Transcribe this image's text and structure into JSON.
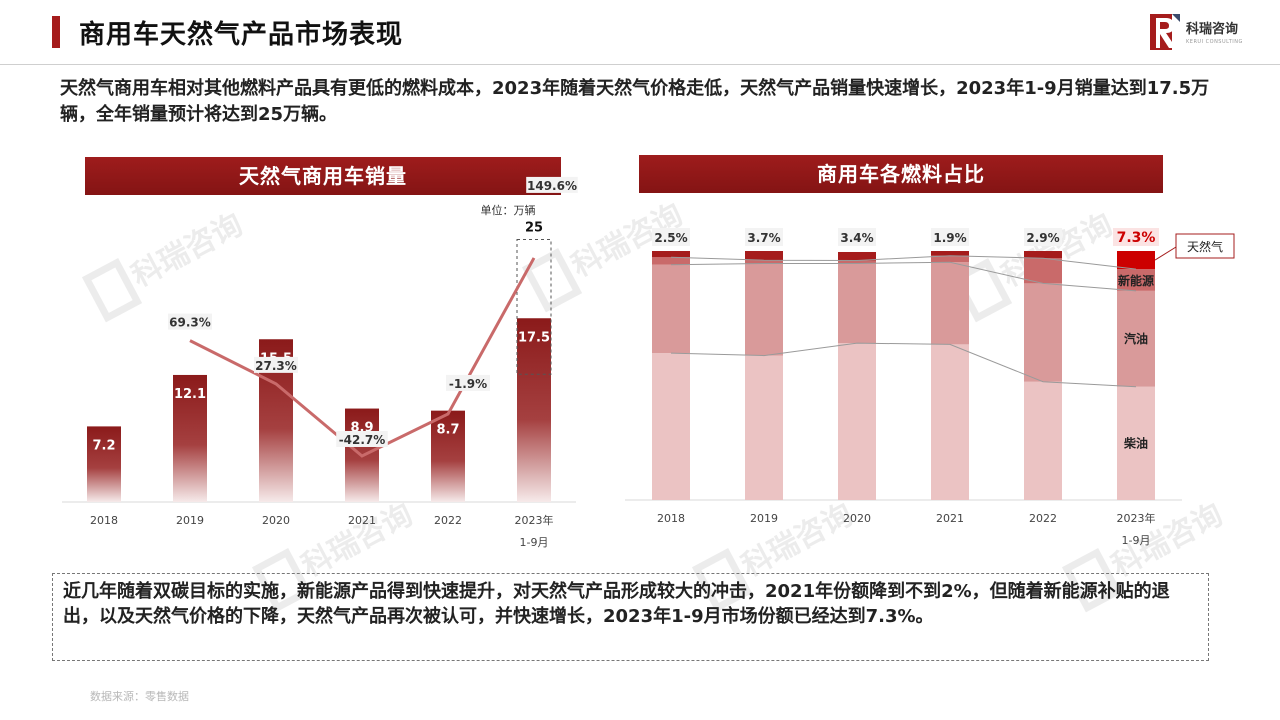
{
  "page": {
    "title": "商用车天然气产品市场表现",
    "logo_name": "科瑞咨询",
    "logo_sub": "KERUI CONSULTING",
    "intro": "天然气商用车相对其他燃料产品具有更低的燃料成本，2023年随着天然气价格走低，天然气产品销量快速增长，2023年1-9月销量达到17.5万辆，全年销量预计将达到25万辆。",
    "conclusion": "近几年随着双碳目标的实施，新能源产品得到快速提升，对天然气产品形成较大的冲击，2021年份额降到不到2%，但随着新能源补贴的退出，以及天然气价格的下降，天然气产品再次被认可，并快速增长，2023年1-9月市场份额已经达到7.3%。",
    "source": "数据来源：零售数据",
    "watermark": "科瑞咨询",
    "colors": {
      "brand": "#a51c1c",
      "line": "#c96a6a",
      "highlight": "#cc0000"
    }
  },
  "chart_data": [
    {
      "type": "bar",
      "title": "天然气商用车销量",
      "unit_label": "单位：万辆",
      "categories": [
        "2018",
        "2019",
        "2020",
        "2021",
        "2022",
        "2023年|1-9月"
      ],
      "series": [
        {
          "values": [
            7.2,
            12.1,
            15.5,
            8.9,
            8.7,
            17.5
          ]
        }
      ],
      "projection": {
        "category": "2023年|1-9月",
        "value": 25,
        "label": "25"
      },
      "growth_line": {
        "values": [
          null,
          69.3,
          27.3,
          -42.7,
          -1.9,
          149.6
        ],
        "labels": [
          "",
          "69.3%",
          "27.3%",
          "-42.7%",
          "-1.9%",
          "149.6%"
        ]
      },
      "bar_colors": [
        "#8b1a1a",
        "#f6eaea"
      ]
    },
    {
      "type": "bar",
      "stacked": true,
      "title": "商用车各燃料占比",
      "categories": [
        "2018",
        "2019",
        "2020",
        "2021",
        "2022",
        "2023年|1-9月"
      ],
      "series": [
        {
          "name": "柴油",
          "values": [
            59,
            58,
            63,
            62.5,
            47.5,
            45.5
          ],
          "color": "#ebc3c3"
        },
        {
          "name": "汽油",
          "values": [
            35.5,
            37,
            32,
            33,
            39.5,
            38.5
          ],
          "color": "#d99a9a"
        },
        {
          "name": "新能源",
          "values": [
            3,
            1.3,
            1.2,
            2.6,
            10.1,
            8.7
          ],
          "color": "#c96a6a"
        },
        {
          "name": "天然气",
          "values": [
            2.5,
            3.7,
            3.4,
            1.9,
            2.9,
            7.3
          ],
          "color": "#a51c1c",
          "highlight_color": "#cc0000"
        }
      ],
      "top_labels": [
        "2.5%",
        "3.7%",
        "3.4%",
        "1.9%",
        "2.9%",
        "7.3%"
      ],
      "ylim": [
        0,
        100
      ]
    }
  ]
}
